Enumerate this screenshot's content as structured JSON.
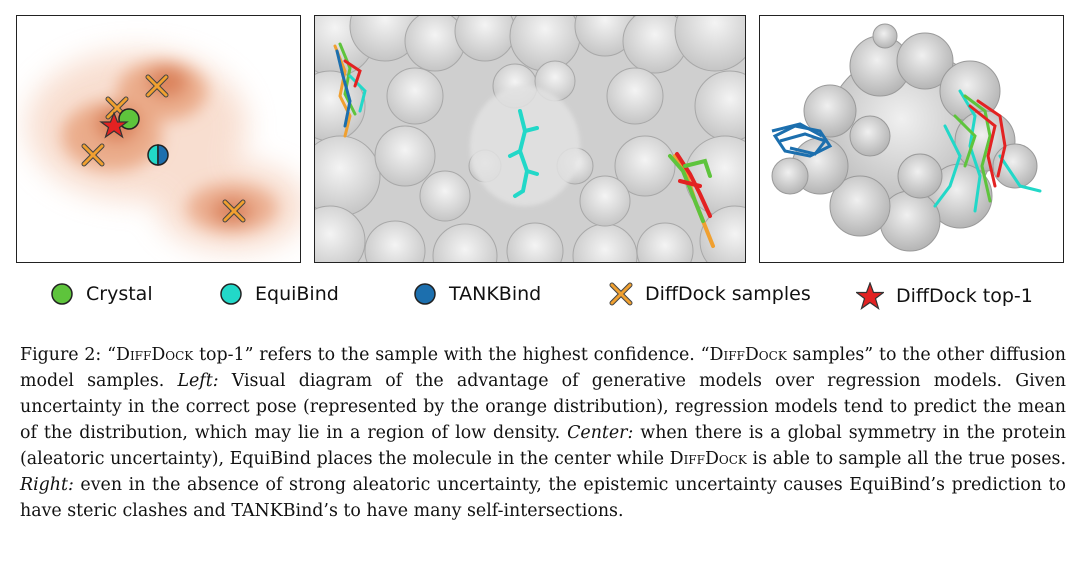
{
  "legend": {
    "crystal": "Crystal",
    "equibind": "EquiBind",
    "tankbind": "TANKBind",
    "samples": "DiffDock samples",
    "top1": "DiffDock top-1"
  },
  "colors": {
    "crystal": "#5ec43c",
    "equibind": "#22d8c8",
    "tankbind": "#1c6fae",
    "samples": "#f0a030",
    "top1": "#e32222",
    "density": "#d9805a"
  },
  "caption": {
    "s1": "Figure 2: “",
    "sc1": "DiffDock",
    "s2": " top-1” refers to the sample with the highest confidence. “",
    "sc2": "DiffDock",
    "s3": " samples” to the other diffusion model samples. ",
    "left_label": "Left:",
    "s4": " Visual diagram of the advantage of generative models over regression models. Given uncertainty in the correct pose (represented by the orange distribution), regression models tend to predict the mean of the distribution, which may lie in a region of low density. ",
    "center_label": "Center:",
    "s5": " when there is a global symmetry in the protein (aleatoric uncertainty), EquiBind places the molecule in the center while ",
    "sc3": "DiffDock",
    "s6": " is able to sample all the true poses. ",
    "right_label": "Right:",
    "s7": " even in the absence of strong aleatoric uncertainty, the epistemic uncertainty causes EquiBind’s prediction to have steric clashes and TANKBind’s to have many self-intersections."
  }
}
